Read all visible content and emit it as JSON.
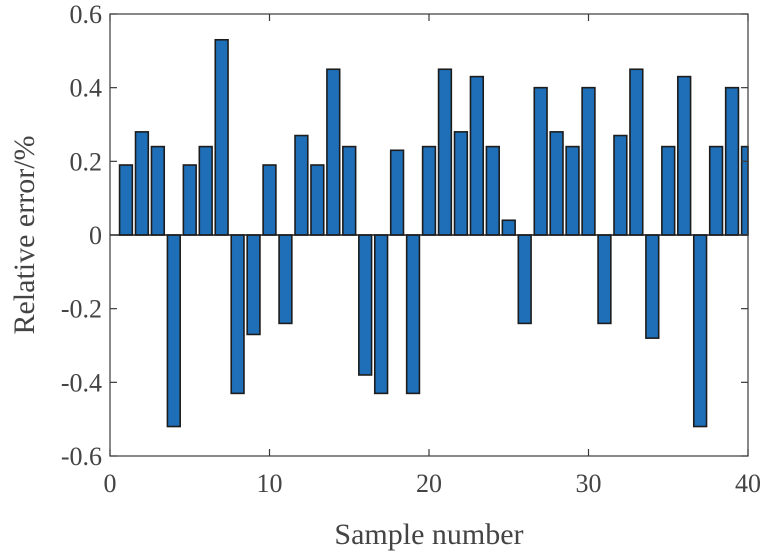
{
  "chart_data": {
    "type": "bar",
    "title": "",
    "xlabel": "Sample number",
    "ylabel": "Relative error/%",
    "xlim": [
      0,
      40
    ],
    "ylim": [
      -0.6,
      0.6
    ],
    "xticks": [
      0,
      10,
      20,
      30,
      40
    ],
    "xtick_labels": [
      "0",
      "10",
      "20",
      "30",
      "40"
    ],
    "yticks": [
      0.6,
      0.4,
      0.2,
      0,
      -0.2,
      -0.4,
      -0.6
    ],
    "ytick_labels": [
      "0.6",
      "0.4",
      "0.2",
      "0",
      "-0.2",
      "-0.4",
      "-0.6"
    ],
    "grid": false,
    "legend": "none",
    "bar_color": "#1f6fb8",
    "categories": [
      1,
      2,
      3,
      4,
      5,
      6,
      7,
      8,
      9,
      10,
      11,
      12,
      13,
      14,
      15,
      16,
      17,
      18,
      19,
      20,
      21,
      22,
      23,
      24,
      25,
      26,
      27,
      28,
      29,
      30,
      31,
      32,
      33,
      34,
      35,
      36,
      37,
      38,
      39,
      40
    ],
    "values": [
      0.19,
      0.28,
      0.24,
      -0.52,
      0.19,
      0.24,
      0.53,
      -0.43,
      -0.27,
      0.19,
      -0.24,
      0.27,
      0.19,
      0.45,
      0.24,
      -0.38,
      -0.43,
      0.23,
      -0.43,
      0.24,
      0.45,
      0.28,
      0.43,
      0.24,
      0.04,
      -0.24,
      0.4,
      0.28,
      0.24,
      0.4,
      -0.24,
      0.27,
      0.45,
      -0.28,
      0.24,
      0.43,
      -0.52,
      0.24,
      0.4,
      0.24
    ]
  }
}
